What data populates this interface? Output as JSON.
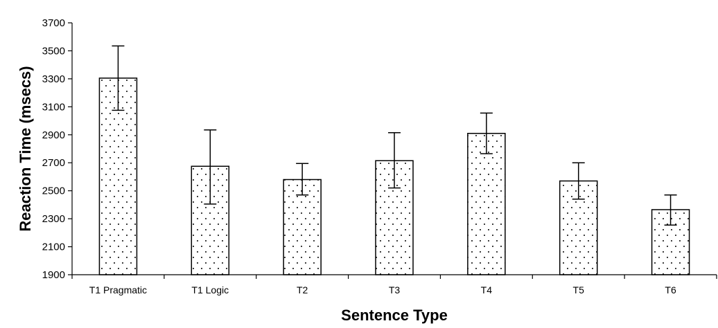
{
  "chart_data": {
    "type": "bar",
    "title": "",
    "xlabel": "Sentence Type",
    "ylabel": "Reaction Time (msecs)",
    "ylim": [
      1900,
      3700
    ],
    "yticks": [
      1900,
      2100,
      2300,
      2500,
      2700,
      2900,
      3100,
      3300,
      3500,
      3700
    ],
    "grid": false,
    "legend": "none",
    "bar_pattern": "dotted",
    "colors": {
      "bar_fill": "#ffffff",
      "bar_stroke": "#000000",
      "dots": "#000000"
    },
    "categories": [
      "T1 Pragmatic",
      "T1 Logic",
      "T2",
      "T3",
      "T4",
      "T5",
      "T6"
    ],
    "values": [
      3305,
      2675,
      2580,
      2715,
      2910,
      2570,
      2365
    ],
    "error_low": [
      3075,
      2405,
      2470,
      2520,
      2765,
      2440,
      2255
    ],
    "error_high": [
      3535,
      2935,
      2695,
      2915,
      3055,
      2700,
      2470
    ]
  }
}
